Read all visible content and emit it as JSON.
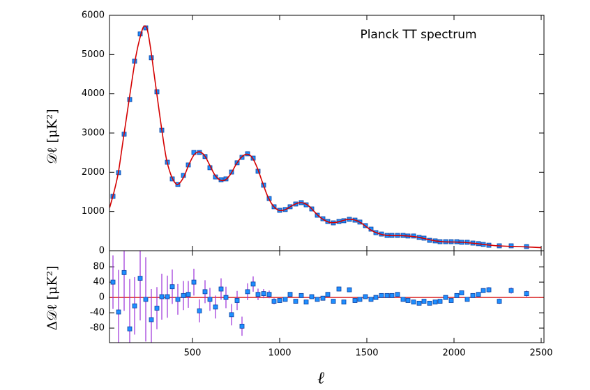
{
  "chart_data": [
    {
      "type": "scatter",
      "annotation": "Planck TT spectrum",
      "ylabel": "𝒟ℓ [μK²]",
      "xlim": [
        24,
        2516
      ],
      "ylim": [
        0,
        6000
      ],
      "yticks": [
        0,
        1000,
        2000,
        3000,
        4000,
        5000,
        6000
      ],
      "x": [
        44,
        76,
        108,
        140,
        168,
        200,
        232,
        264,
        296,
        324,
        356,
        384,
        416,
        448,
        476,
        508,
        540,
        572,
        600,
        632,
        664,
        692,
        724,
        756,
        784,
        816,
        848,
        876,
        908,
        940,
        968,
        1000,
        1032,
        1060,
        1092,
        1124,
        1152,
        1184,
        1216,
        1248,
        1276,
        1308,
        1340,
        1368,
        1400,
        1432,
        1460,
        1492,
        1524,
        1552,
        1584,
        1616,
        1644,
        1676,
        1708,
        1736,
        1768,
        1800,
        1828,
        1860,
        1892,
        1920,
        1952,
        1984,
        2016,
        2044,
        2076,
        2108,
        2140,
        2168,
        2200,
        2260,
        2328,
        2416
      ],
      "series": [
        {
          "color": "#1e8fff",
          "values": [
            1385,
            1990,
            2970,
            3855,
            4830,
            5525,
            5680,
            4920,
            4050,
            3070,
            2255,
            1830,
            1690,
            1920,
            2185,
            2505,
            2505,
            2400,
            2115,
            1880,
            1810,
            1830,
            2005,
            2240,
            2380,
            2470,
            2360,
            2025,
            1670,
            1330,
            1120,
            1030,
            1050,
            1120,
            1190,
            1225,
            1170,
            1065,
            905,
            815,
            745,
            710,
            745,
            765,
            800,
            780,
            730,
            640,
            550,
            460,
            425,
            390,
            390,
            390,
            390,
            375,
            375,
            340,
            320,
            265,
            250,
            230,
            230,
            230,
            230,
            215,
            215,
            195,
            180,
            160,
            140,
            125,
            125,
            105
          ]
        },
        {
          "color": "#d40000",
          "line": true,
          "x": [
            25,
            50,
            75,
            100,
            125,
            150,
            175,
            200,
            220,
            240,
            260,
            280,
            300,
            325,
            350,
            375,
            400,
            420,
            450,
            480,
            510,
            540,
            570,
            600,
            630,
            660,
            690,
            720,
            750,
            780,
            810,
            840,
            870,
            900,
            930,
            960,
            990,
            1020,
            1050,
            1080,
            1110,
            1140,
            1170,
            1200,
            1230,
            1260,
            1290,
            1320,
            1350,
            1380,
            1410,
            1440,
            1470,
            1500,
            1530,
            1560,
            1600,
            1650,
            1700,
            1750,
            1800,
            1850,
            1900,
            1950,
            2000,
            2050,
            2100,
            2150,
            2200,
            2250,
            2300,
            2350,
            2400,
            2450,
            2500
          ],
          "values": [
            1100,
            1500,
            2000,
            2750,
            3500,
            4250,
            4950,
            5450,
            5710,
            5650,
            5150,
            4500,
            3850,
            3050,
            2350,
            1950,
            1730,
            1700,
            1880,
            2200,
            2450,
            2520,
            2420,
            2170,
            1920,
            1800,
            1810,
            1960,
            2200,
            2380,
            2460,
            2390,
            2130,
            1760,
            1400,
            1160,
            1040,
            1030,
            1090,
            1170,
            1220,
            1210,
            1130,
            990,
            860,
            770,
            720,
            720,
            750,
            790,
            800,
            770,
            700,
            600,
            510,
            450,
            400,
            385,
            385,
            370,
            340,
            290,
            245,
            225,
            222,
            215,
            195,
            170,
            145,
            125,
            115,
            108,
            100,
            90,
            78
          ]
        }
      ]
    },
    {
      "type": "errorbar",
      "ylabel": "Δ𝒟ℓ [μK²]",
      "xlabel": "ℓ",
      "xlim": [
        24,
        2516
      ],
      "xticks": [
        500,
        1000,
        1500,
        2000,
        2500
      ],
      "ylim": [
        -118,
        122
      ],
      "yticks": [
        -80,
        -40,
        0,
        40,
        80
      ],
      "color": "#1e8fff",
      "error_color": "#9b30d9",
      "zero_color": "#d40000",
      "x": [
        44,
        76,
        108,
        140,
        168,
        200,
        232,
        264,
        296,
        324,
        356,
        384,
        416,
        448,
        476,
        508,
        540,
        572,
        600,
        632,
        664,
        692,
        724,
        756,
        784,
        816,
        848,
        876,
        908,
        940,
        968,
        1000,
        1032,
        1060,
        1092,
        1124,
        1152,
        1184,
        1216,
        1248,
        1276,
        1308,
        1340,
        1368,
        1400,
        1432,
        1460,
        1492,
        1524,
        1552,
        1584,
        1616,
        1644,
        1676,
        1708,
        1736,
        1768,
        1800,
        1828,
        1860,
        1892,
        1920,
        1952,
        1984,
        2016,
        2044,
        2076,
        2108,
        2140,
        2168,
        2200,
        2260,
        2328,
        2416
      ],
      "values": [
        40,
        -38,
        65,
        -82,
        -22,
        50,
        -5,
        -58,
        -28,
        2,
        2,
        28,
        -5,
        5,
        8,
        40,
        -35,
        15,
        -5,
        -25,
        22,
        0,
        -45,
        -8,
        -75,
        15,
        35,
        8,
        10,
        8,
        -10,
        -8,
        -5,
        8,
        -10,
        5,
        -12,
        2,
        -5,
        -2,
        8,
        -10,
        22,
        -12,
        20,
        -8,
        -5,
        2,
        -5,
        0,
        5,
        5,
        5,
        8,
        -5,
        -8,
        -12,
        -15,
        -10,
        -15,
        -12,
        -10,
        0,
        -8,
        5,
        12,
        -5,
        5,
        8,
        18,
        20,
        -10,
        18,
        10
      ],
      "errors": [
        70,
        110,
        100,
        130,
        75,
        110,
        110,
        80,
        55,
        60,
        55,
        45,
        40,
        38,
        35,
        35,
        30,
        30,
        30,
        30,
        28,
        28,
        28,
        25,
        25,
        22,
        20,
        15,
        12,
        10,
        8,
        6,
        6,
        6,
        6,
        6,
        6,
        6,
        6,
        6,
        6,
        6,
        6,
        6,
        6,
        6,
        6,
        6,
        6,
        6,
        5,
        5,
        5,
        5,
        5,
        5,
        5,
        5,
        5,
        5,
        5,
        5,
        5,
        5,
        5,
        5,
        5,
        6,
        6,
        6,
        7,
        7,
        8,
        8
      ]
    }
  ]
}
